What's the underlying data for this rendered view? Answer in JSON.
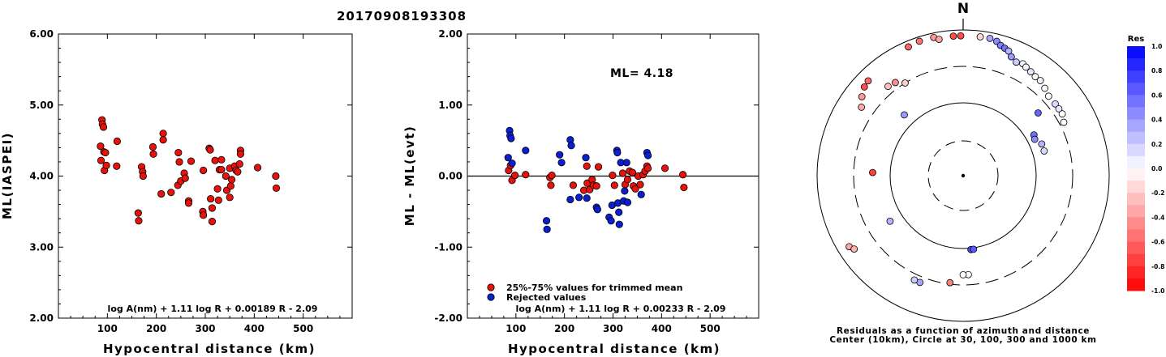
{
  "title": "20170908193308",
  "chart_data": [
    {
      "type": "scatter",
      "ylabel": "ML(IASPEI)",
      "xlabel": "Hypocentral distance (km)",
      "xlim": [
        0,
        600
      ],
      "ylim": [
        2.0,
        6.0
      ],
      "x_ticks": [
        100,
        200,
        300,
        400,
        500
      ],
      "y_ticks": [
        "2.00",
        "3.00",
        "4.00",
        "5.00",
        "6.00"
      ],
      "formula": "log A(nm) + 1.11 log R + 0.00189 R - 2.09",
      "points": [
        [
          86,
          4.42
        ],
        [
          87,
          4.22
        ],
        [
          89,
          4.79
        ],
        [
          90,
          4.73
        ],
        [
          92,
          4.69
        ],
        [
          93,
          4.34
        ],
        [
          94,
          4.08
        ],
        [
          96,
          4.33
        ],
        [
          98,
          4.15
        ],
        [
          120,
          4.49
        ],
        [
          119,
          4.14
        ],
        [
          163,
          3.48
        ],
        [
          164,
          3.37
        ],
        [
          170,
          4.13
        ],
        [
          172,
          4.06
        ],
        [
          173,
          4.0
        ],
        [
          193,
          4.41
        ],
        [
          194,
          4.31
        ],
        [
          210,
          3.75
        ],
        [
          214,
          4.6
        ],
        [
          214,
          4.51
        ],
        [
          230,
          3.77
        ],
        [
          244,
          3.87
        ],
        [
          245,
          4.33
        ],
        [
          247,
          4.2
        ],
        [
          250,
          3.93
        ],
        [
          257,
          4.04
        ],
        [
          259,
          3.97
        ],
        [
          266,
          3.65
        ],
        [
          266,
          3.62
        ],
        [
          271,
          4.21
        ],
        [
          295,
          3.5
        ],
        [
          296,
          3.45
        ],
        [
          296,
          4.08
        ],
        [
          308,
          4.39
        ],
        [
          310,
          4.37
        ],
        [
          311,
          3.68
        ],
        [
          314,
          3.36
        ],
        [
          314,
          3.55
        ],
        [
          320,
          4.22
        ],
        [
          325,
          3.82
        ],
        [
          327,
          3.66
        ],
        [
          329,
          4.09
        ],
        [
          333,
          4.09
        ],
        [
          333,
          4.23
        ],
        [
          342,
          4.0
        ],
        [
          344,
          3.8
        ],
        [
          350,
          4.11
        ],
        [
          350,
          3.7
        ],
        [
          352,
          3.86
        ],
        [
          354,
          3.95
        ],
        [
          360,
          4.14
        ],
        [
          363,
          4.08
        ],
        [
          366,
          4.06
        ],
        [
          370,
          4.17
        ],
        [
          372,
          4.36
        ],
        [
          372,
          4.31
        ],
        [
          407,
          4.12
        ],
        [
          444,
          4.0
        ],
        [
          445,
          3.83
        ]
      ]
    },
    {
      "type": "scatter",
      "ylabel": "ML - ML(evt)",
      "xlabel": "Hypocentral distance (km)",
      "xlim": [
        0,
        600
      ],
      "ylim": [
        -2.0,
        2.0
      ],
      "x_ticks": [
        100,
        200,
        300,
        400,
        500
      ],
      "y_ticks": [
        "-2.00",
        "-1.00",
        "0.00",
        "1.00",
        "2.00"
      ],
      "ml_label": "ML=  4.18",
      "formula": "log A(nm) + 1.11 log R + 0.00233 R - 2.09",
      "legend": [
        {
          "label": "25%-75% values for trimmed mean",
          "color": "#e8120c"
        },
        {
          "label": "Rejected values",
          "color": "#0a1ed2"
        }
      ],
      "series": [
        {
          "name": "25%-75% values for trimmed mean",
          "color": "#e8120c",
          "points": [
            [
              85,
              0.08
            ],
            [
              89,
              0.15
            ],
            [
              92,
              -0.06
            ],
            [
              98,
              0.01
            ],
            [
              120,
              0.02
            ],
            [
              170,
              -0.02
            ],
            [
              172,
              -0.13
            ],
            [
              174,
              0.01
            ],
            [
              218,
              -0.13
            ],
            [
              240,
              -0.2
            ],
            [
              246,
              0.14
            ],
            [
              247,
              -0.1
            ],
            [
              252,
              -0.19
            ],
            [
              257,
              -0.05
            ],
            [
              260,
              -0.13
            ],
            [
              266,
              -0.14
            ],
            [
              270,
              0.13
            ],
            [
              299,
              0.01
            ],
            [
              303,
              -0.13
            ],
            [
              320,
              0.04
            ],
            [
              325,
              -0.12
            ],
            [
              330,
              -0.05
            ],
            [
              334,
              0.07
            ],
            [
              340,
              0.05
            ],
            [
              342,
              -0.14
            ],
            [
              346,
              -0.18
            ],
            [
              352,
              0.0
            ],
            [
              356,
              -0.12
            ],
            [
              362,
              0.02
            ],
            [
              366,
              0.07
            ],
            [
              370,
              0.14
            ],
            [
              372,
              0.11
            ],
            [
              407,
              0.11
            ],
            [
              444,
              0.02
            ],
            [
              446,
              -0.16
            ]
          ]
        },
        {
          "name": "Rejected values",
          "color": "#0a1ed2",
          "points": [
            [
              84,
              0.26
            ],
            [
              87,
              0.64
            ],
            [
              88,
              0.57
            ],
            [
              90,
              0.53
            ],
            [
              92,
              0.18
            ],
            [
              120,
              0.36
            ],
            [
              163,
              -0.63
            ],
            [
              164,
              -0.75
            ],
            [
              190,
              0.3
            ],
            [
              194,
              0.19
            ],
            [
              212,
              -0.33
            ],
            [
              212,
              0.51
            ],
            [
              214,
              0.43
            ],
            [
              230,
              -0.3
            ],
            [
              244,
              0.26
            ],
            [
              246,
              -0.31
            ],
            [
              266,
              -0.44
            ],
            [
              268,
              -0.47
            ],
            [
              292,
              -0.58
            ],
            [
              296,
              -0.63
            ],
            [
              298,
              -0.41
            ],
            [
              308,
              0.36
            ],
            [
              309,
              0.33
            ],
            [
              310,
              -0.38
            ],
            [
              312,
              -0.51
            ],
            [
              313,
              -0.68
            ],
            [
              316,
              0.19
            ],
            [
              322,
              -0.35
            ],
            [
              324,
              -0.21
            ],
            [
              328,
              0.19
            ],
            [
              330,
              -0.37
            ],
            [
              358,
              -0.26
            ],
            [
              370,
              0.33
            ],
            [
              372,
              0.29
            ]
          ]
        }
      ]
    },
    {
      "type": "polar",
      "north_label": "N",
      "caption_line1": "Residuals as a function of azimuth and distance",
      "caption_line2": "Center (10km), Circle at 30, 100, 300 and 1000 km",
      "colorbar": {
        "title": "Res",
        "labels": [
          "1.0",
          "0.8",
          "0.6",
          "0.4",
          "0.2",
          "0.0",
          "-0.2",
          "-0.4",
          "-0.6",
          "-0.8",
          "-1.0"
        ]
      },
      "stations": [
        {
          "az": 337,
          "d": 0.96,
          "r": -0.6
        },
        {
          "az": 342,
          "d": 0.97,
          "r": -0.55
        },
        {
          "az": 348,
          "d": 0.97,
          "r": -0.4
        },
        {
          "az": 350,
          "d": 0.95,
          "r": -0.35
        },
        {
          "az": 356,
          "d": 0.96,
          "r": -0.7
        },
        {
          "az": 359,
          "d": 0.96,
          "r": -0.7
        },
        {
          "az": 7,
          "d": 0.96,
          "r": -0.15
        },
        {
          "az": 11,
          "d": 0.96,
          "r": 0.35
        },
        {
          "az": 14,
          "d": 0.95,
          "r": 0.45
        },
        {
          "az": 16,
          "d": 0.93,
          "r": 0.5
        },
        {
          "az": 18,
          "d": 0.92,
          "r": 0.55
        },
        {
          "az": 20,
          "d": 0.91,
          "r": 0.3
        },
        {
          "az": 22,
          "d": 0.88,
          "r": 0.4
        },
        {
          "az": 25,
          "d": 0.86,
          "r": 0.2
        },
        {
          "az": 28,
          "d": 0.87,
          "r": 0.05
        },
        {
          "az": 30,
          "d": 0.86,
          "r": 0.05
        },
        {
          "az": 33,
          "d": 0.85,
          "r": 0.1
        },
        {
          "az": 36,
          "d": 0.84,
          "r": -0.05
        },
        {
          "az": 39,
          "d": 0.84,
          "r": 0.05
        },
        {
          "az": 43,
          "d": 0.82,
          "r": 0.0
        },
        {
          "az": 47,
          "d": 0.8,
          "r": 0.0
        },
        {
          "az": 52,
          "d": 0.8,
          "r": 0.15
        },
        {
          "az": 55,
          "d": 0.8,
          "r": 0.1
        },
        {
          "az": 58,
          "d": 0.8,
          "r": 0.0
        },
        {
          "az": 62,
          "d": 0.78,
          "r": 0.0
        },
        {
          "az": 50,
          "d": 0.67,
          "r": 0.6
        },
        {
          "az": 60,
          "d": 0.56,
          "r": 0.55
        },
        {
          "az": 63,
          "d": 0.55,
          "r": 0.45
        },
        {
          "az": 68,
          "d": 0.58,
          "r": 0.3
        },
        {
          "az": 73,
          "d": 0.58,
          "r": 0.15
        },
        {
          "az": 304,
          "d": 0.84,
          "r": -0.35
        },
        {
          "az": 308,
          "d": 0.88,
          "r": -0.4
        },
        {
          "az": 312,
          "d": 0.91,
          "r": -0.7
        },
        {
          "az": 315,
          "d": 0.92,
          "r": -0.6
        },
        {
          "az": 320,
          "d": 0.8,
          "r": -0.25
        },
        {
          "az": 324,
          "d": 0.79,
          "r": -0.45
        },
        {
          "az": 328,
          "d": 0.75,
          "r": -0.2
        },
        {
          "az": 316,
          "d": 0.58,
          "r": 0.4
        },
        {
          "az": 272,
          "d": 0.62,
          "r": -0.75
        },
        {
          "az": 238,
          "d": 0.59,
          "r": 0.3
        },
        {
          "az": 238,
          "d": 0.92,
          "r": -0.35
        },
        {
          "az": 236,
          "d": 0.9,
          "r": -0.3
        },
        {
          "az": 174,
          "d": 0.51,
          "r": 0.7
        },
        {
          "az": 172,
          "d": 0.51,
          "r": 0.65
        },
        {
          "az": 177,
          "d": 0.68,
          "r": 0.0
        },
        {
          "az": 180,
          "d": 0.68,
          "r": 0.0
        },
        {
          "az": 187,
          "d": 0.74,
          "r": -0.5
        },
        {
          "az": 202,
          "d": 0.79,
          "r": 0.35
        },
        {
          "az": 205,
          "d": 0.79,
          "r": 0.2
        }
      ]
    }
  ]
}
